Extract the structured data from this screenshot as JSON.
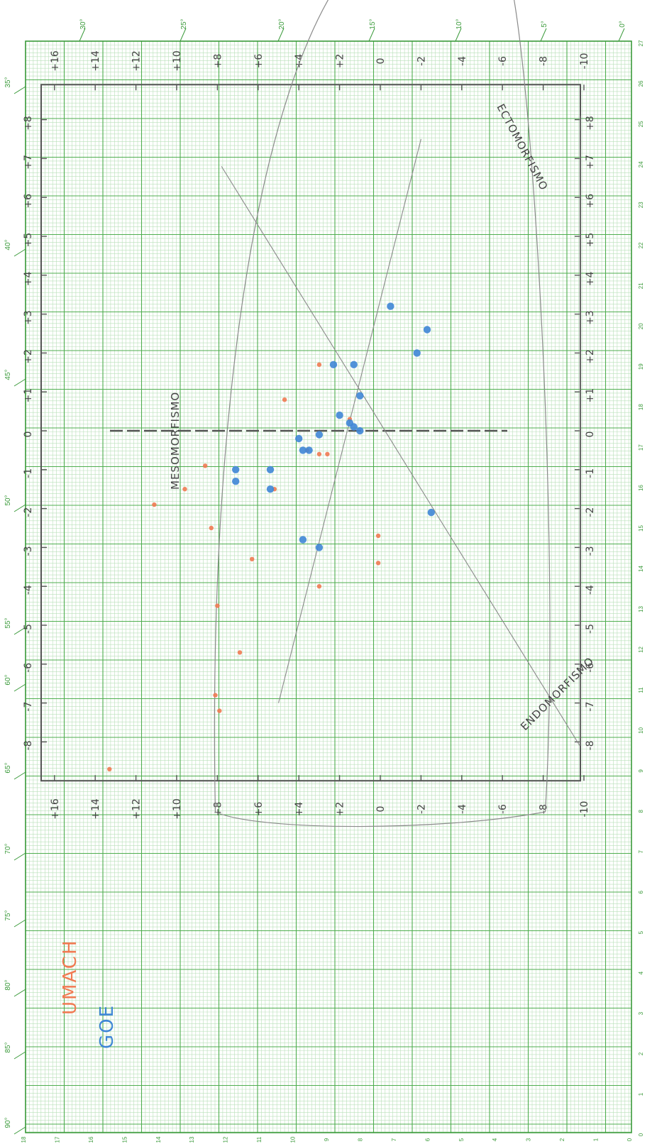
{
  "colors": {
    "grid_fine": "#b9e0b9",
    "grid_major": "#4fae4f",
    "frame": "#3a9a3a",
    "axis": "#555555",
    "pencil": "#8a8a8a",
    "pencil_dark": "#444444",
    "series_1": "#f07a52",
    "series_2": "#3f86d6"
  },
  "paper": {
    "top_ruler_degrees": [
      "30°",
      "25°",
      "20°",
      "15°",
      "10°",
      "5°",
      "0°"
    ],
    "left_ruler_degrees": [
      "35°",
      "40°",
      "45°",
      "50°",
      "55°",
      "60°",
      "65°",
      "70°",
      "75°",
      "80°",
      "85°",
      "90°"
    ],
    "right_ruler_numbers": [
      "27",
      "26",
      "25",
      "24",
      "23",
      "22",
      "21",
      "20",
      "19",
      "18",
      "17",
      "16",
      "15",
      "14",
      "13",
      "12",
      "11",
      "10",
      "9",
      "8",
      "7",
      "6",
      "5",
      "4",
      "3",
      "2",
      "1",
      "0"
    ],
    "bottom_ruler_numbers": [
      "18",
      "17",
      "16",
      "15",
      "14",
      "13",
      "12",
      "11",
      "10",
      "9",
      "8",
      "7",
      "6",
      "5",
      "4",
      "3",
      "2",
      "1",
      "0"
    ]
  },
  "chart_data": {
    "type": "scatter",
    "title": "",
    "xlabel": "",
    "ylabel": "",
    "xlim": [
      -8,
      8
    ],
    "ylim": [
      -10,
      16
    ],
    "x_ticks": [
      "-8",
      "-7",
      "-6",
      "-5",
      "-4",
      "-3",
      "-2",
      "-1",
      "0",
      "+1",
      "+2",
      "+3",
      "+4",
      "+5",
      "+6",
      "+7",
      "+8"
    ],
    "y_ticks": [
      "+16",
      "+14",
      "+12",
      "+10",
      "+8",
      "+6",
      "+4",
      "+2",
      "0",
      "-2",
      "-4",
      "-6",
      "-8",
      "-10"
    ],
    "region_labels": [
      "MESOMORFISMO",
      "ECTOMORFISMO",
      "ENDOMORFISMO"
    ],
    "legend_position": "bottom-left",
    "series": [
      {
        "name": "UMACH",
        "points": [
          {
            "x": 1.7,
            "y": 3.0
          },
          {
            "x": 0.8,
            "y": 4.7
          },
          {
            "x": -0.5,
            "y": 3.6
          },
          {
            "x": 0.3,
            "y": 1.5
          },
          {
            "x": -0.6,
            "y": 2.6
          },
          {
            "x": -0.9,
            "y": 8.6
          },
          {
            "x": -1.5,
            "y": 9.6
          },
          {
            "x": -1.9,
            "y": 11.1
          },
          {
            "x": -2.5,
            "y": 8.3
          },
          {
            "x": -2.7,
            "y": 0.1
          },
          {
            "x": -3.4,
            "y": 0.1
          },
          {
            "x": -4.0,
            "y": 3.0
          },
          {
            "x": -3.3,
            "y": 6.3
          },
          {
            "x": -4.5,
            "y": 8.0
          },
          {
            "x": -5.7,
            "y": 6.9
          },
          {
            "x": -6.8,
            "y": 8.1
          },
          {
            "x": -7.2,
            "y": 7.9
          },
          {
            "x": -8.7,
            "y": 13.3
          },
          {
            "x": -1.5,
            "y": 5.2
          },
          {
            "x": -0.6,
            "y": 3.0
          }
        ]
      },
      {
        "name": "GOE",
        "points": [
          {
            "x": 3.2,
            "y": -0.5
          },
          {
            "x": 2.6,
            "y": -2.3
          },
          {
            "x": 2.0,
            "y": -1.8
          },
          {
            "x": 1.7,
            "y": 2.3
          },
          {
            "x": 1.7,
            "y": 1.3
          },
          {
            "x": 0.9,
            "y": 1.0
          },
          {
            "x": 0.4,
            "y": 2.0
          },
          {
            "x": 0.2,
            "y": 1.5
          },
          {
            "x": -0.2,
            "y": 4.0
          },
          {
            "x": -2.1,
            "y": -2.5
          },
          {
            "x": -0.5,
            "y": 3.5
          },
          {
            "x": -0.1,
            "y": 3.0
          },
          {
            "x": -0.5,
            "y": 3.8
          },
          {
            "x": 0.0,
            "y": 1.0
          },
          {
            "x": 0.1,
            "y": 1.3
          },
          {
            "x": -1.0,
            "y": 5.4
          },
          {
            "x": -1.5,
            "y": 5.4
          },
          {
            "x": -2.8,
            "y": 3.8
          },
          {
            "x": -3.0,
            "y": 3.0
          },
          {
            "x": -1.0,
            "y": 7.1
          },
          {
            "x": -1.3,
            "y": 7.1
          }
        ]
      }
    ]
  }
}
